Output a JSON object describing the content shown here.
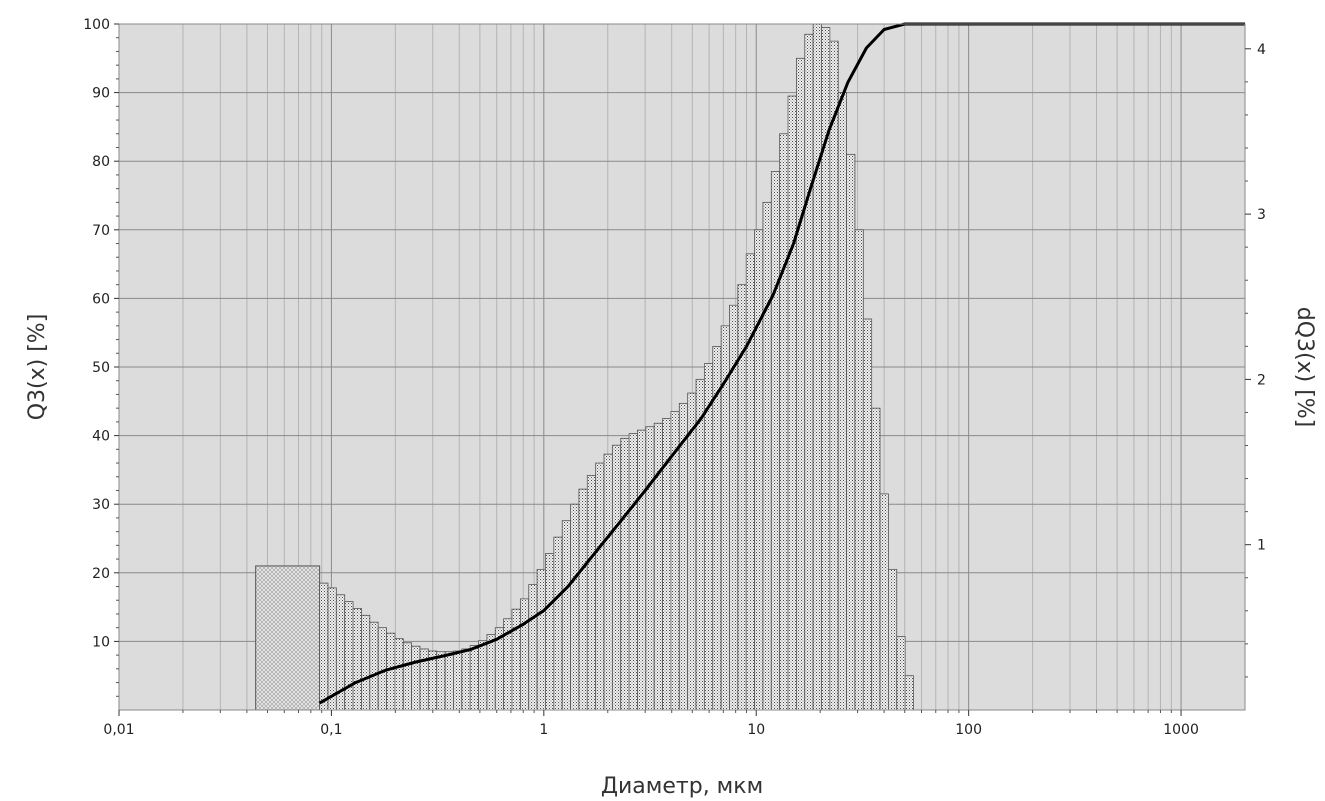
{
  "chart_data": {
    "type": "bar",
    "subtype": "particle-size-distribution (histogram + cumulative line)",
    "xlabel": "Диаметр, мкм",
    "ylabel_left": "Q3(x) [%]",
    "ylabel_right": "dQ3(x) [%]",
    "x_scale": "log",
    "xlim": [
      0.01,
      2000
    ],
    "ylim_left": [
      0,
      100
    ],
    "ylim_right": [
      0,
      4.15
    ],
    "x_ticks": [
      {
        "value": 0.01,
        "label": "0,01"
      },
      {
        "value": 0.1,
        "label": "0,1"
      },
      {
        "value": 1,
        "label": "1"
      },
      {
        "value": 10,
        "label": "10"
      },
      {
        "value": 100,
        "label": "100"
      },
      {
        "value": 1000,
        "label": "1000"
      }
    ],
    "y_left_ticks": [
      {
        "value": 10,
        "label": "10"
      },
      {
        "value": 20,
        "label": "20"
      },
      {
        "value": 30,
        "label": "30"
      },
      {
        "value": 40,
        "label": "40"
      },
      {
        "value": 50,
        "label": "50"
      },
      {
        "value": 60,
        "label": "60"
      },
      {
        "value": 70,
        "label": "70"
      },
      {
        "value": 80,
        "label": "80"
      },
      {
        "value": 90,
        "label": "90"
      },
      {
        "value": 100,
        "label": "100"
      }
    ],
    "y_right_ticks": [
      {
        "value": 1,
        "label": "1"
      },
      {
        "value": 2,
        "label": "2"
      },
      {
        "value": 3,
        "label": "3"
      },
      {
        "value": 4,
        "label": "4"
      }
    ],
    "grid": true,
    "first_bin": {
      "x_from": 0.044,
      "x_to": 0.088,
      "height_pct": 21
    },
    "histogram_range": {
      "x_from": 0.088,
      "x_to": 55.0
    },
    "histogram_heights_pct": [
      18.5,
      17.8,
      16.8,
      15.8,
      14.8,
      13.8,
      12.8,
      12.0,
      11.2,
      10.4,
      9.8,
      9.3,
      8.9,
      8.6,
      8.5,
      8.5,
      8.6,
      8.9,
      9.4,
      10.1,
      11.0,
      12.0,
      13.3,
      14.7,
      16.2,
      18.3,
      20.5,
      22.8,
      25.2,
      27.6,
      30.0,
      32.2,
      34.2,
      36.0,
      37.3,
      38.6,
      39.6,
      40.3,
      40.8,
      41.3,
      41.8,
      42.5,
      43.5,
      44.7,
      46.2,
      48.2,
      50.5,
      53.0,
      56.0,
      59.0,
      62.0,
      66.5,
      70.0,
      74.0,
      78.5,
      84.0,
      89.5,
      95.0,
      98.5,
      100.0,
      99.5,
      97.5,
      90.0,
      81.0,
      70.0,
      57.0,
      44.0,
      31.5,
      20.5,
      10.7,
      5.0
    ],
    "cumulative_curve": [
      {
        "x": 0.088,
        "y": 1.0
      },
      {
        "x": 0.1,
        "y": 2.0
      },
      {
        "x": 0.13,
        "y": 4.0
      },
      {
        "x": 0.18,
        "y": 5.8
      },
      {
        "x": 0.25,
        "y": 7.0
      },
      {
        "x": 0.35,
        "y": 8.0
      },
      {
        "x": 0.45,
        "y": 8.8
      },
      {
        "x": 0.6,
        "y": 10.3
      },
      {
        "x": 0.8,
        "y": 12.5
      },
      {
        "x": 1.0,
        "y": 14.5
      },
      {
        "x": 1.3,
        "y": 18.0
      },
      {
        "x": 1.7,
        "y": 22.5
      },
      {
        "x": 2.2,
        "y": 26.8
      },
      {
        "x": 3.0,
        "y": 32.0
      },
      {
        "x": 4.0,
        "y": 37.0
      },
      {
        "x": 5.5,
        "y": 42.5
      },
      {
        "x": 7.0,
        "y": 47.5
      },
      {
        "x": 9.0,
        "y": 53.0
      },
      {
        "x": 12.0,
        "y": 60.5
      },
      {
        "x": 15.0,
        "y": 68.0
      },
      {
        "x": 18.0,
        "y": 76.0
      },
      {
        "x": 22.0,
        "y": 84.5
      },
      {
        "x": 27.0,
        "y": 91.5
      },
      {
        "x": 33.0,
        "y": 96.5
      },
      {
        "x": 40.0,
        "y": 99.2
      },
      {
        "x": 50.0,
        "y": 100.0
      },
      {
        "x": 2000.0,
        "y": 100.0
      }
    ],
    "colors": {
      "plot_background": "#dcdcdc",
      "grid_major": "#8a8a8a",
      "grid_minor": "#b4b4b4",
      "bar_fill": "#eeeeee",
      "bar_stroke": "#555555",
      "curve": "#000000"
    }
  }
}
